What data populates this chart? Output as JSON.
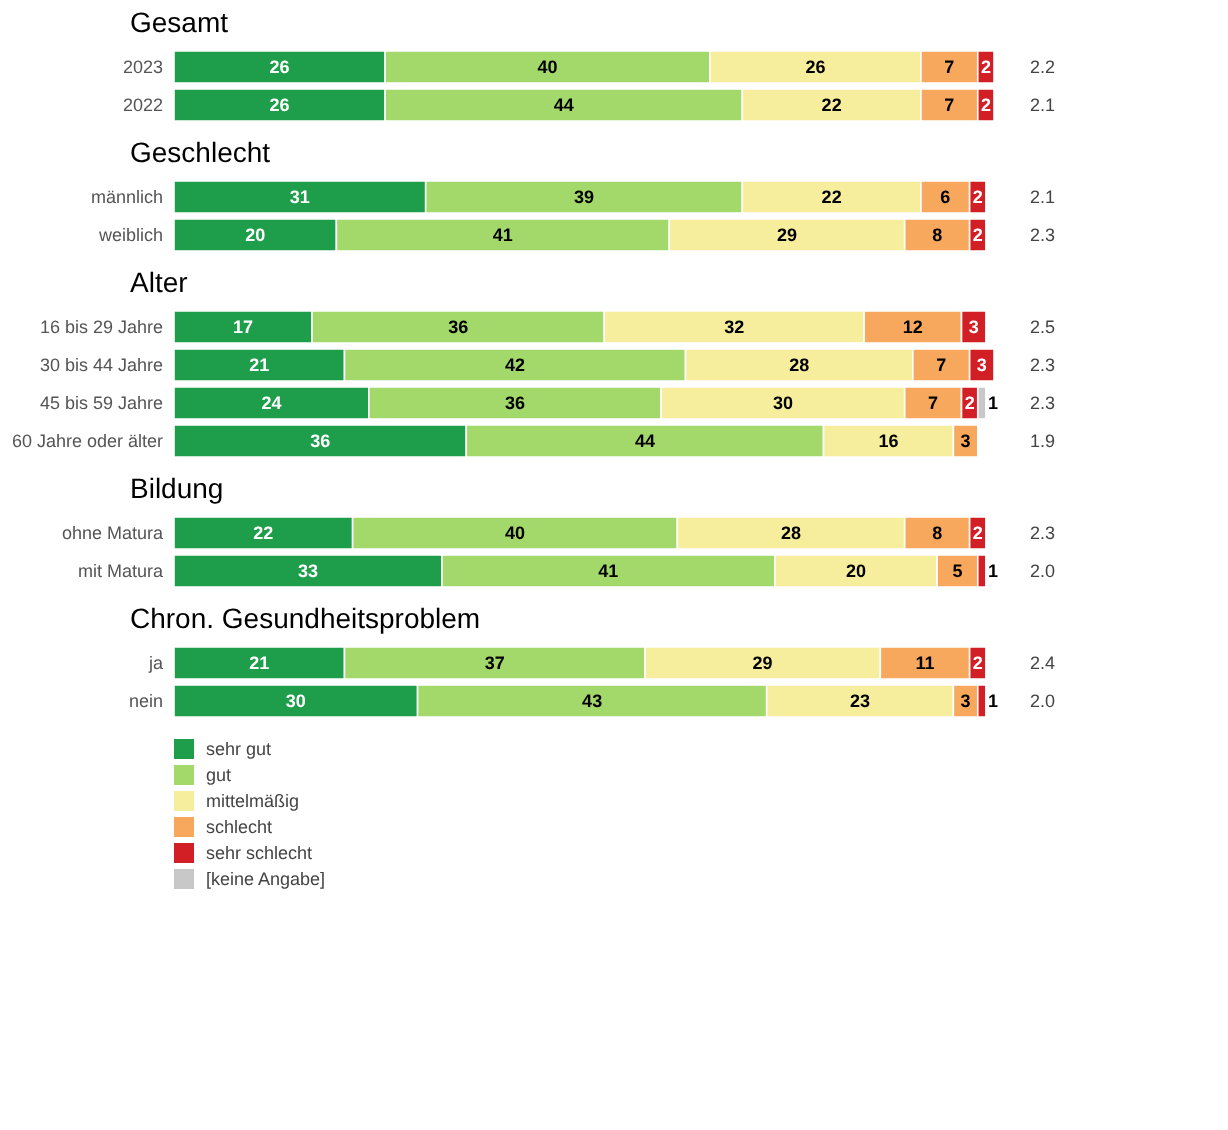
{
  "chart_data": [
    {
      "type": "bar",
      "orientation": "horizontal",
      "stacked": true,
      "title": "Gesamt",
      "categories": [
        "2023",
        "2022"
      ],
      "tick_labels": "y",
      "data_labels": true,
      "annotations": [
        "2.2",
        "2.1"
      ],
      "series": [
        {
          "color": "#1e9e4a",
          "values": [
            26,
            26
          ]
        },
        {
          "color": "#a3d86b",
          "values": [
            40,
            44
          ]
        },
        {
          "color": "#f6ee9c",
          "values": [
            26,
            22
          ]
        },
        {
          "color": "#f7a85c",
          "values": [
            7,
            7
          ]
        },
        {
          "color": "#d21f26",
          "values": [
            2,
            2
          ]
        }
      ]
    },
    {
      "type": "bar",
      "orientation": "horizontal",
      "stacked": true,
      "title": "Geschlecht",
      "categories": [
        "männlich",
        "weiblich"
      ],
      "tick_labels": "y",
      "data_labels": true,
      "annotations": [
        "2.1",
        "2.3"
      ],
      "series": [
        {
          "color": "#1e9e4a",
          "values": [
            31,
            20
          ]
        },
        {
          "color": "#a3d86b",
          "values": [
            39,
            41
          ]
        },
        {
          "color": "#f6ee9c",
          "values": [
            22,
            29
          ]
        },
        {
          "color": "#f7a85c",
          "values": [
            6,
            8
          ]
        },
        {
          "color": "#d21f26",
          "values": [
            2,
            2
          ]
        }
      ]
    },
    {
      "type": "bar",
      "orientation": "horizontal",
      "stacked": true,
      "title": "Alter",
      "categories": [
        "16 bis 29 Jahre",
        "30 bis 44 Jahre",
        "45 bis 59 Jahre",
        "60 Jahre oder älter"
      ],
      "tick_labels": "y",
      "data_labels": true,
      "annotations": [
        "2.5",
        "2.3",
        "2.3",
        "1.9"
      ],
      "series": [
        {
          "color": "#1e9e4a",
          "values": [
            17,
            21,
            24,
            36
          ]
        },
        {
          "color": "#a3d86b",
          "values": [
            36,
            42,
            36,
            44
          ]
        },
        {
          "color": "#f6ee9c",
          "values": [
            32,
            28,
            30,
            16
          ]
        },
        {
          "color": "#f7a85c",
          "values": [
            12,
            7,
            7,
            3
          ]
        },
        {
          "color": "#d21f26",
          "values": [
            3,
            3,
            2,
            null
          ]
        },
        {
          "color": "#c8c8c8",
          "values": [
            null,
            null,
            1,
            null
          ]
        }
      ]
    },
    {
      "type": "bar",
      "orientation": "horizontal",
      "stacked": true,
      "title": "Bildung",
      "categories": [
        "ohne Matura",
        "mit Matura"
      ],
      "tick_labels": "y",
      "data_labels": true,
      "annotations": [
        "2.3",
        "2.0"
      ],
      "series": [
        {
          "color": "#1e9e4a",
          "values": [
            22,
            33
          ]
        },
        {
          "color": "#a3d86b",
          "values": [
            40,
            41
          ]
        },
        {
          "color": "#f6ee9c",
          "values": [
            28,
            20
          ]
        },
        {
          "color": "#f7a85c",
          "values": [
            8,
            5
          ]
        },
        {
          "color": "#d21f26",
          "values": [
            2,
            1
          ]
        }
      ]
    },
    {
      "type": "bar",
      "orientation": "horizontal",
      "stacked": true,
      "title": "Chron. Gesundheitsproblem",
      "categories": [
        "ja",
        "nein"
      ],
      "tick_labels": "y",
      "data_labels": true,
      "legend": "bottom left",
      "annotations": [
        "2.4",
        "2.0"
      ],
      "series": [
        {
          "name": "sehr gut",
          "color": "#1e9e4a",
          "values": [
            21,
            30
          ]
        },
        {
          "name": "gut",
          "color": "#a3d86b",
          "values": [
            37,
            43
          ]
        },
        {
          "name": "mittelmäßig",
          "color": "#f6ee9c",
          "values": [
            29,
            23
          ]
        },
        {
          "name": "schlecht",
          "color": "#f7a85c",
          "values": [
            11,
            3
          ]
        },
        {
          "name": "sehr schlecht",
          "color": "#d21f26",
          "values": [
            2,
            1
          ]
        },
        {
          "name": "[keine Angabe]",
          "color": "#c8c8c8",
          "values": [
            null,
            null
          ]
        }
      ]
    }
  ]
}
